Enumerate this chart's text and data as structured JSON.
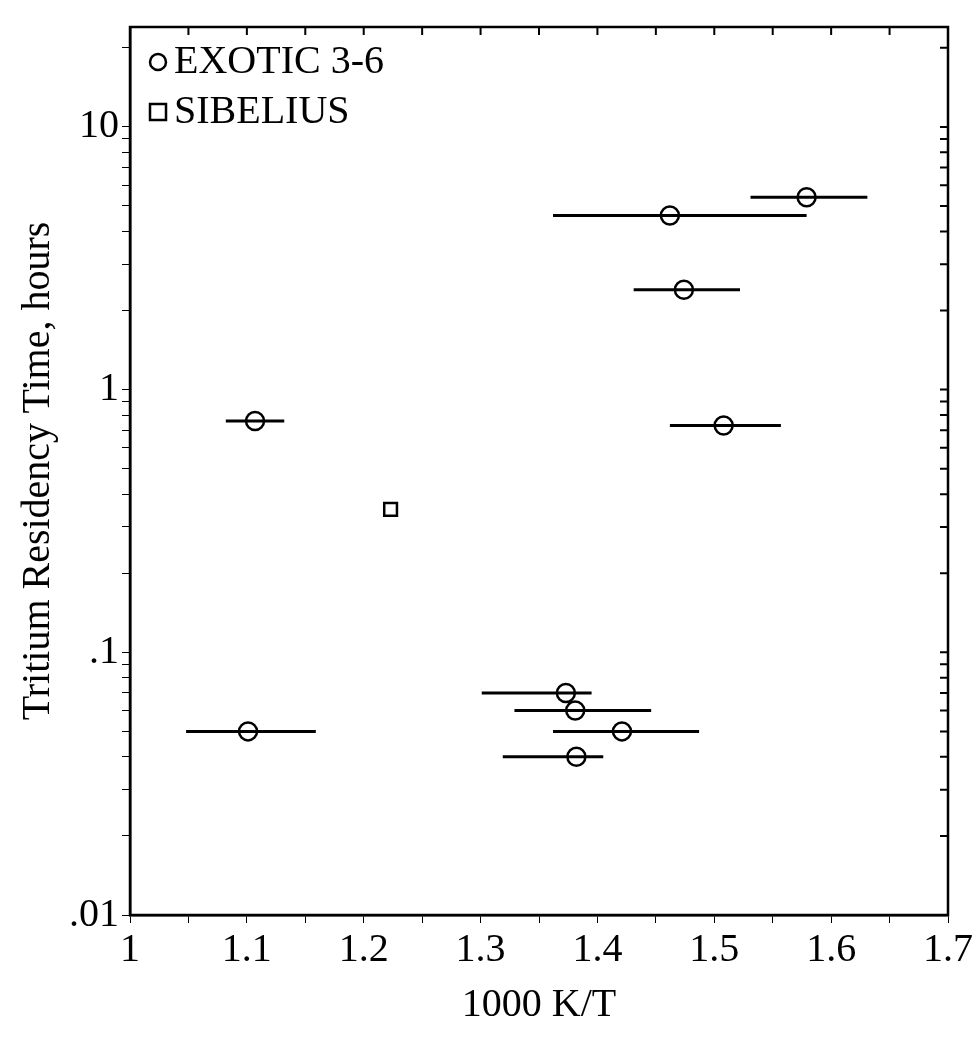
{
  "chart_data": {
    "type": "scatter",
    "xlabel": "1000 K/T",
    "ylabel": "Tritium Residency Time, hours",
    "log": "y",
    "grid": false,
    "legend": "top left",
    "xlim": [
      1,
      1.7
    ],
    "xticks": [
      1,
      {
        "value": 1.05,
        "label": null
      },
      1.1,
      {
        "value": 1.15,
        "label": null
      },
      1.2,
      {
        "value": 1.25,
        "label": null
      },
      1.3,
      {
        "value": 1.35,
        "label": null
      },
      1.4,
      {
        "value": 1.45,
        "label": null
      },
      1.5,
      {
        "value": 1.55,
        "label": null
      },
      1.6,
      {
        "value": 1.65,
        "label": null
      },
      1.7
    ],
    "ylim": [
      0.01,
      24
    ],
    "yticks": [
      {
        "value": 0.01,
        "label": ".01"
      },
      {
        "value": 0.02,
        "label": null
      },
      {
        "value": 0.03,
        "label": null
      },
      {
        "value": 0.04,
        "label": null
      },
      {
        "value": 0.05,
        "label": null
      },
      {
        "value": 0.06,
        "label": null
      },
      {
        "value": 0.07,
        "label": null
      },
      {
        "value": 0.08,
        "label": null
      },
      {
        "value": 0.09,
        "label": null
      },
      {
        "value": 0.1,
        "label": ".1"
      },
      {
        "value": 0.2,
        "label": null
      },
      {
        "value": 0.3,
        "label": null
      },
      {
        "value": 0.4,
        "label": null
      },
      {
        "value": 0.5,
        "label": null
      },
      {
        "value": 0.6,
        "label": null
      },
      {
        "value": 0.7,
        "label": null
      },
      {
        "value": 0.8,
        "label": null
      },
      {
        "value": 0.9,
        "label": null
      },
      1,
      {
        "value": 2,
        "label": null
      },
      {
        "value": 3,
        "label": null
      },
      {
        "value": 4,
        "label": null
      },
      {
        "value": 5,
        "label": null
      },
      {
        "value": 6,
        "label": null
      },
      {
        "value": 7,
        "label": null
      },
      {
        "value": 8,
        "label": null
      },
      {
        "value": 9,
        "label": null
      },
      10,
      {
        "value": 20,
        "label": null
      }
    ],
    "series": [
      {
        "name": "EXOTIC 3-6",
        "color": "#000000",
        "marker": "circle",
        "x": [
          1.579,
          1.462,
          1.474,
          1.107,
          1.508,
          1.101,
          1.373,
          1.381,
          1.421,
          1.382
        ],
        "values": [
          5.4,
          4.6,
          2.4,
          0.76,
          0.73,
          0.05,
          0.07,
          0.06,
          0.05,
          0.04
        ],
        "xerrors": [
          [
            1.531,
            1.631
          ],
          [
            1.362,
            1.579
          ],
          [
            1.431,
            1.522
          ],
          [
            1.082,
            1.132
          ],
          [
            1.462,
            1.557
          ],
          [
            1.048,
            1.159
          ],
          [
            1.301,
            1.395
          ],
          [
            1.329,
            1.446
          ],
          [
            1.362,
            1.487
          ],
          [
            1.319,
            1.405
          ]
        ]
      },
      {
        "name": "SIBELIUS",
        "color": "#000000",
        "marker": "square",
        "x": [
          1.223
        ],
        "values": [
          0.35
        ]
      }
    ]
  }
}
